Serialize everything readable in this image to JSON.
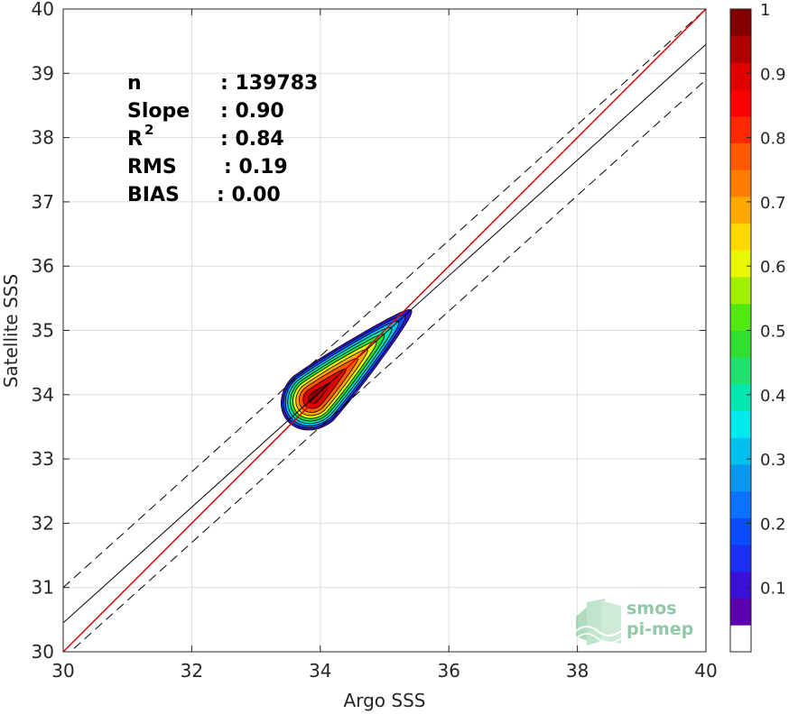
{
  "chart_data": {
    "type": "heatmap",
    "subtype": "2d density scatter with regression",
    "xlabel": "Argo SSS",
    "ylabel": "Satellite SSS",
    "xlim": [
      30,
      40
    ],
    "ylim": [
      30,
      40
    ],
    "xticks": [
      "30",
      "32",
      "34",
      "36",
      "38",
      "40"
    ],
    "yticks": [
      "30",
      "31",
      "32",
      "33",
      "34",
      "35",
      "36",
      "37",
      "38",
      "39",
      "40"
    ],
    "grid": true,
    "stats": [
      {
        "key": "n",
        "value": ": 139783"
      },
      {
        "key": "Slope",
        "value": ": 0.90"
      },
      {
        "key": "R",
        "sup": "2",
        "value": ": 0.84"
      },
      {
        "key": "RMS",
        "value": ": 0.19"
      },
      {
        "key": "BIAS",
        "value": ": 0.00"
      }
    ],
    "lines": {
      "identity": {
        "slope": 1.0,
        "intercept": 0.0,
        "color": "#e00000"
      },
      "regression": {
        "slope": 0.9,
        "intercept": 3.45,
        "color": "#000000"
      },
      "regression_band_offset": 0.55
    },
    "density": {
      "peak_x": 33.9,
      "peak_y": 33.95,
      "levels": [
        0.05,
        0.15,
        0.25,
        0.35,
        0.45,
        0.55,
        0.65,
        0.75,
        0.85,
        0.95
      ]
    },
    "colorbar": {
      "ticks": [
        "0.1",
        "0.2",
        "0.3",
        "0.4",
        "0.5",
        "0.6",
        "0.7",
        "0.8",
        "0.9",
        "1"
      ],
      "tick_values": [
        0.1,
        0.2,
        0.3,
        0.4,
        0.5,
        0.6,
        0.7,
        0.8,
        0.9,
        1.0
      ],
      "range": [
        0,
        1
      ],
      "colors": [
        "#ffffff",
        "#5d00b0",
        "#3a10d8",
        "#1d2ef5",
        "#0a4dff",
        "#0a72ff",
        "#0898f0",
        "#00c0f0",
        "#00e8f0",
        "#00e8b0",
        "#20e070",
        "#30e030",
        "#50ea10",
        "#a0f000",
        "#e8f800",
        "#ffd800",
        "#ffa800",
        "#ff7e00",
        "#ff5a00",
        "#ff2800",
        "#ff0000",
        "#e00000",
        "#b00000",
        "#840000"
      ]
    },
    "logo": {
      "line1": "smos",
      "line2": "pi-mep"
    }
  }
}
